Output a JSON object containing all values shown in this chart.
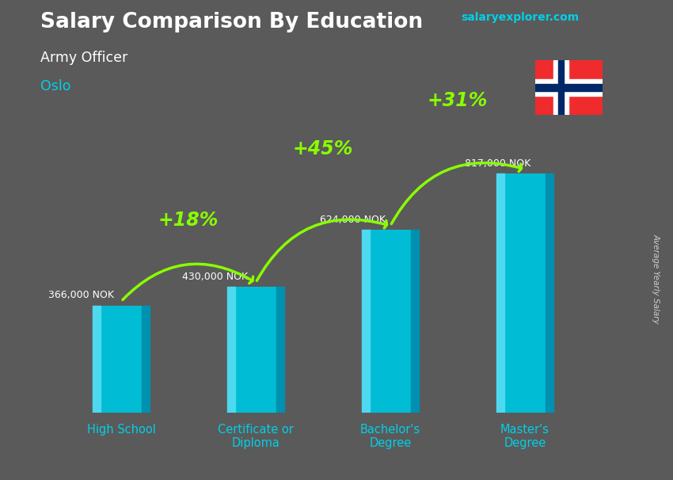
{
  "title": "Salary Comparison By Education",
  "subtitle": "Army Officer",
  "city": "Oslo",
  "ylabel": "Average Yearly Salary",
  "categories": [
    "High School",
    "Certificate or\nDiploma",
    "Bachelor's\nDegree",
    "Master's\nDegree"
  ],
  "values": [
    366000,
    430000,
    624000,
    817000
  ],
  "value_labels": [
    "366,000 NOK",
    "430,000 NOK",
    "624,000 NOK",
    "817,000 NOK"
  ],
  "pct_labels": [
    "+18%",
    "+45%",
    "+31%"
  ],
  "bar_color": "#00bcd4",
  "bar_highlight": "#4dd9f0",
  "bar_shadow": "#0090b0",
  "background_color": "#5a5a5a",
  "title_color": "#ffffff",
  "subtitle_color": "#ffffff",
  "city_color": "#00d0e8",
  "value_label_color": "#ffffff",
  "pct_color": "#88ff00",
  "tick_label_color": "#00d0e8",
  "website_color": "#00d0e8",
  "ylabel_color": "#cccccc",
  "figsize": [
    8.5,
    6.06
  ],
  "dpi": 100,
  "max_val": 950000
}
